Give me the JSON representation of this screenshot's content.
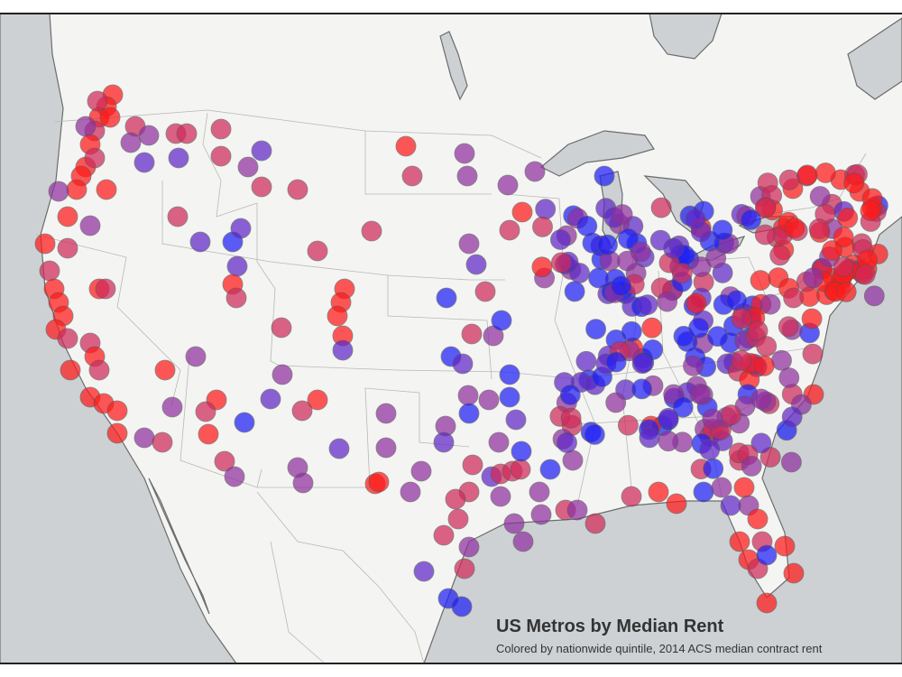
{
  "map": {
    "title": "US Metros by Median Rent",
    "subtitle": "Colored by nationwide quintile, 2014 ACS median contract rent"
  }
}
